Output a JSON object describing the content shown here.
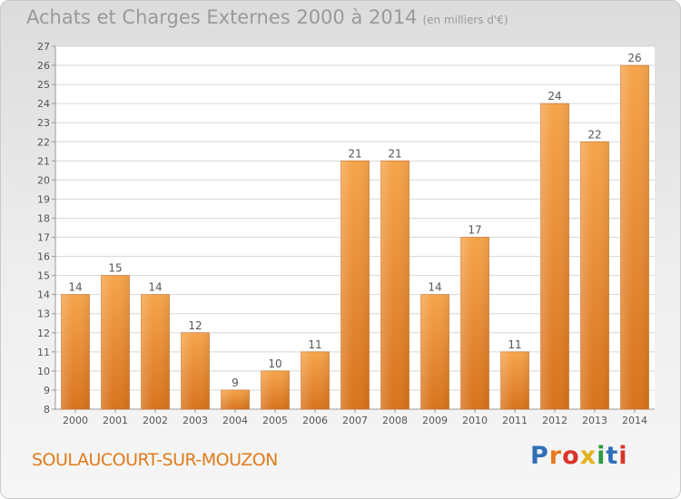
{
  "header": {
    "title": "Achats et Charges Externes 2000 à 2014",
    "unit": "(en milliers d'€)"
  },
  "footer": {
    "commune": "SOULAUCOURT-SUR-MOUZON",
    "logo_letters": [
      "P",
      "r",
      "o",
      "x",
      "i",
      "t",
      "i"
    ],
    "logo_colors": [
      "#2f6fb6",
      "#e8781e",
      "#d9342a",
      "#e3b11c",
      "#2d9a45",
      "#2f6fb6",
      "#d9342a"
    ]
  },
  "colors": {
    "bar_top": "#f6a44c",
    "bar_bottom": "#d8731d",
    "grid": "#d7d7d7",
    "text": "#555555"
  },
  "chart_data": {
    "type": "bar",
    "categories": [
      "2000",
      "2001",
      "2002",
      "2003",
      "2004",
      "2005",
      "2006",
      "2007",
      "2008",
      "2009",
      "2010",
      "2011",
      "2012",
      "2013",
      "2014"
    ],
    "values": [
      14,
      15,
      14,
      12,
      9,
      10,
      11,
      21,
      21,
      14,
      17,
      11,
      24,
      22,
      26
    ],
    "value_labels": [
      "14",
      "15",
      "14",
      "12",
      "9",
      "10",
      "11",
      "21",
      "21",
      "14",
      "17",
      "11",
      "24",
      "22",
      "26"
    ],
    "title": "Achats et Charges Externes 2000 à 2014",
    "subtitle": "(en milliers d'€)",
    "xlabel": "",
    "ylabel": "",
    "ylim": [
      8,
      27
    ],
    "y_ticks": [
      "8",
      "9",
      "10",
      "11",
      "12",
      "13",
      "14",
      "15",
      "16",
      "17",
      "18",
      "19",
      "20",
      "21",
      "22",
      "23",
      "24",
      "25",
      "26",
      "27"
    ],
    "grid": true
  }
}
